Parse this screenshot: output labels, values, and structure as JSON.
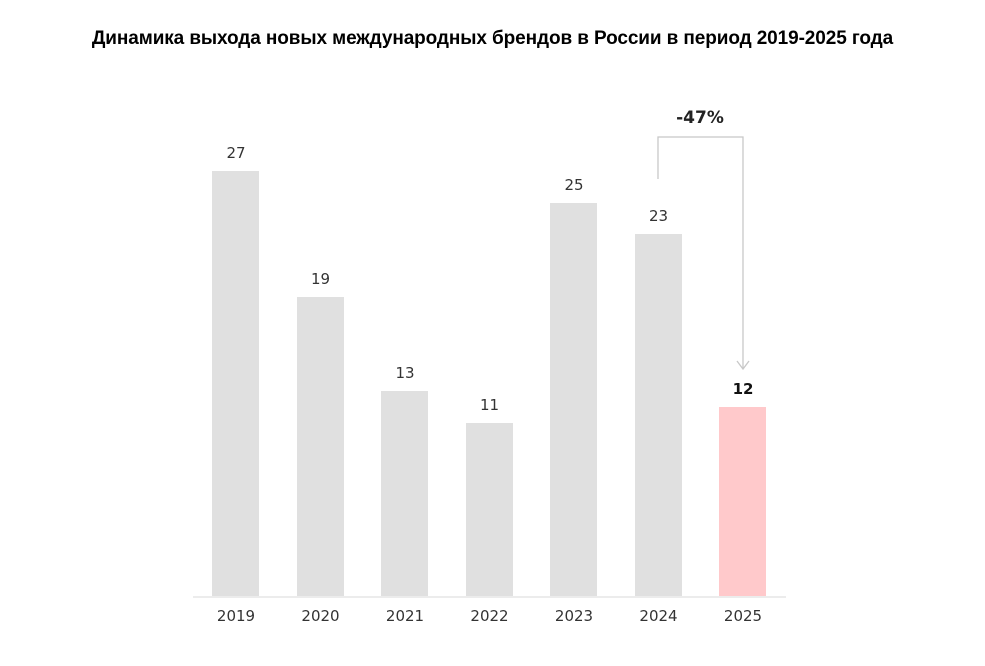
{
  "title": "Динамика выхода новых международных брендов в России в период 2019-2025 года",
  "colors": {
    "bar": "#e0e0e0",
    "highlight": "#ffc9cb",
    "connector": "#c8c8c8"
  },
  "annotation": {
    "label": "-47%",
    "from": "2024",
    "to": "2025"
  },
  "chart_data": {
    "type": "bar",
    "title": "Динамика выхода новых международных брендов в России в период 2019-2025 года",
    "categories": [
      "2019",
      "2020",
      "2021",
      "2022",
      "2023",
      "2024",
      "2025"
    ],
    "values": [
      27,
      19,
      13,
      11,
      25,
      23,
      12
    ],
    "highlight": "2025",
    "annotations": [
      {
        "text": "-47%",
        "from": "2024",
        "to": "2025"
      }
    ],
    "xlabel": "",
    "ylabel": "",
    "grid": false,
    "ylim": [
      0,
      30
    ]
  }
}
